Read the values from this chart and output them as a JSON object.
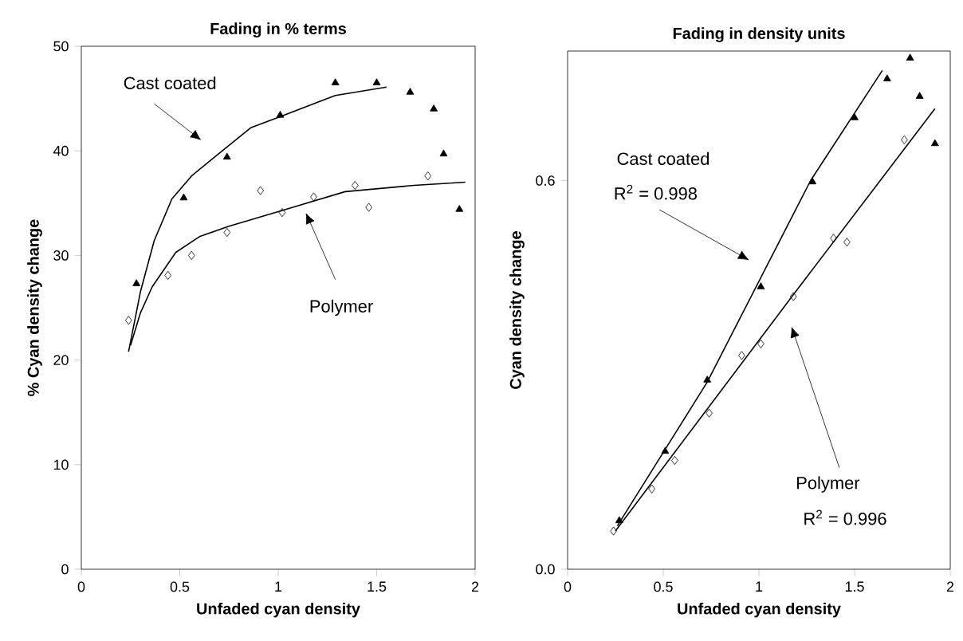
{
  "chart_data": [
    {
      "type": "scatter",
      "title": "Fading in % terms",
      "xlabel": "Unfaded cyan density",
      "ylabel": "% Cyan density change",
      "xlim": [
        0,
        2
      ],
      "xticks": [
        0,
        0.5,
        1,
        1.5,
        2
      ],
      "ylim": [
        0,
        50
      ],
      "yticks": [
        0,
        10,
        20,
        30,
        40,
        50
      ],
      "series": [
        {
          "color": "#000000",
          "marker": "triangle",
          "x": [
            0.28,
            0.52,
            0.74,
            1.01,
            1.29,
            1.5,
            1.67,
            1.79,
            1.84,
            1.92
          ],
          "values": [
            27.3,
            35.5,
            39.4,
            43.4,
            46.5,
            46.5,
            45.6,
            44.0,
            39.7,
            34.4
          ]
        },
        {
          "color": "#000000",
          "marker": "diamond",
          "x": [
            0.24,
            0.44,
            0.56,
            0.74,
            0.91,
            1.02,
            1.18,
            1.39,
            1.46,
            1.76
          ],
          "values": [
            23.8,
            28.1,
            30.0,
            32.2,
            36.2,
            34.1,
            35.6,
            36.7,
            34.6,
            37.6
          ]
        },
        {
          "type": "line",
          "color": "#000000",
          "marker": "none",
          "line_style": "solid",
          "x": [
            0.24,
            0.3,
            0.37,
            0.46,
            0.56,
            0.67,
            0.86,
            1.0,
            1.29,
            1.55
          ],
          "values": [
            20.8,
            26.5,
            31.4,
            35.4,
            37.6,
            39.3,
            42.2,
            43.2,
            45.3,
            46.1
          ]
        },
        {
          "type": "line",
          "color": "#000000",
          "marker": "none",
          "line_style": "solid",
          "x": [
            0.25,
            0.3,
            0.36,
            0.48,
            0.6,
            0.75,
            1.02,
            1.34,
            1.69,
            1.95
          ],
          "values": [
            21.4,
            24.5,
            27.0,
            30.3,
            31.8,
            32.8,
            34.3,
            36.1,
            36.7,
            37.0
          ]
        }
      ],
      "annotations": [
        "Cast coated",
        "Polymer"
      ]
    },
    {
      "type": "scatter",
      "title": "Fading in density units",
      "xlabel": "Unfaded cyan density",
      "ylabel": "Cyan density change",
      "xlim": [
        0,
        2
      ],
      "xticks": [
        0,
        0.5,
        1,
        1.5,
        2
      ],
      "ylim": [
        0,
        0.8
      ],
      "yticks": [
        {
          "value": 0,
          "label": "0.0"
        },
        {
          "value": 0.6,
          "label": "0.6"
        }
      ],
      "series": [
        {
          "color": "#000000",
          "marker": "triangle",
          "x": [
            0.27,
            0.51,
            0.73,
            1.01,
            1.28,
            1.5,
            1.67,
            1.79,
            1.84,
            1.92
          ],
          "values": [
            0.075,
            0.182,
            0.292,
            0.436,
            0.598,
            0.697,
            0.757,
            0.789,
            0.73,
            0.657
          ]
        },
        {
          "color": "#000000",
          "marker": "diamond",
          "x": [
            0.24,
            0.44,
            0.56,
            0.74,
            0.91,
            1.01,
            1.18,
            1.39,
            1.46,
            1.76
          ],
          "values": [
            0.059,
            0.124,
            0.168,
            0.241,
            0.33,
            0.348,
            0.421,
            0.511,
            0.505,
            0.663
          ]
        },
        {
          "type": "line",
          "color": "#000000",
          "marker": "none",
          "line_style": "solid",
          "x": [
            0.26,
            0.73,
            1.27,
            1.645
          ],
          "values": [
            0.067,
            0.289,
            0.6,
            0.77
          ]
        },
        {
          "type": "line",
          "color": "#000000",
          "marker": "none",
          "line_style": "solid",
          "x": [
            0.25,
            1.17,
            1.92
          ],
          "values": [
            0.059,
            0.42,
            0.711
          ]
        }
      ],
      "annotations": [
        "Cast coated",
        "R$^{2}$ = 0.998",
        "Polymer",
        "R$^{2}$ = 0.996"
      ]
    }
  ]
}
